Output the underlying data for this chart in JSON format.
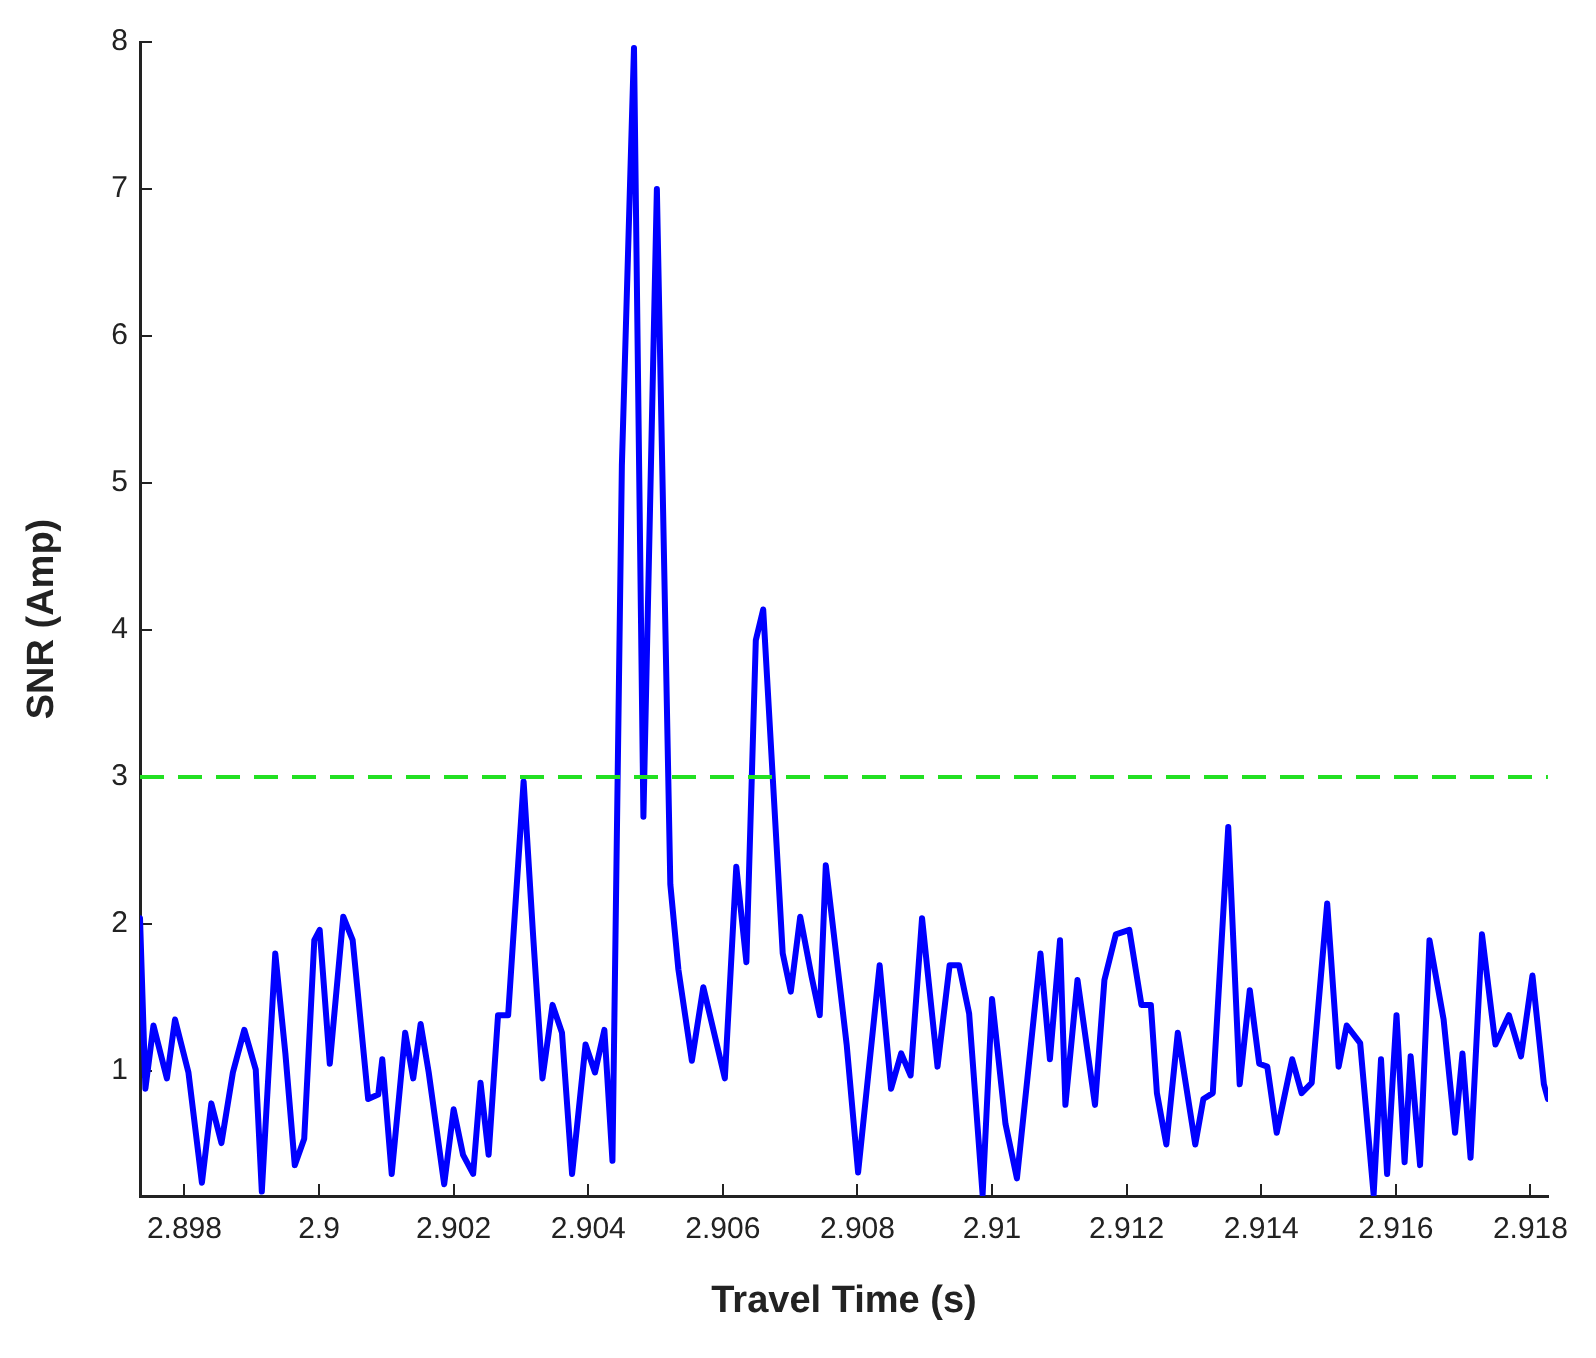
{
  "chart_data": {
    "type": "line",
    "xlabel": "Travel Time (s)",
    "ylabel": "SNR (Amp)",
    "xlim": [
      2.89734,
      2.91826
    ],
    "ylim": [
      0.15,
      8
    ],
    "xticks": [
      2.898,
      2.9,
      2.902,
      2.904,
      2.906,
      2.908,
      2.91,
      2.912,
      2.914,
      2.916,
      2.918
    ],
    "yticks": [
      1,
      2,
      3,
      4,
      5,
      6,
      7,
      8
    ],
    "grid": false,
    "legend": false,
    "marker": "none",
    "line_style": "solid",
    "ref_lines": [
      {
        "axis": "y",
        "value": 3,
        "color": "#22e022",
        "line_style": "dashed"
      }
    ],
    "series": [
      {
        "color": "#0000ff",
        "x": [
          2.89734,
          2.89742,
          2.89754,
          2.89774,
          2.89786,
          2.89806,
          2.89826,
          2.8984,
          2.89855,
          2.89872,
          2.89889,
          2.89906,
          2.89915,
          2.89935,
          2.8995,
          2.89964,
          2.89978,
          2.89993,
          2.90001,
          2.90016,
          2.90036,
          2.9005,
          2.90073,
          2.90088,
          2.90094,
          2.90108,
          2.90128,
          2.9014,
          2.90151,
          2.90163,
          2.90186,
          2.902,
          2.90214,
          2.90229,
          2.9024,
          2.90252,
          2.90266,
          2.90281,
          2.90304,
          2.90318,
          2.90332,
          2.90347,
          2.90361,
          2.90376,
          2.90396,
          2.9041,
          2.90424,
          2.90436,
          2.9045,
          2.90468,
          2.90482,
          2.90502,
          2.90522,
          2.90534,
          2.90554,
          2.90571,
          2.90603,
          2.9062,
          2.90635,
          2.90649,
          2.9066,
          2.90689,
          2.90701,
          2.90715,
          2.90732,
          2.90744,
          2.90753,
          2.90784,
          2.90801,
          2.90833,
          2.9085,
          2.90865,
          2.90879,
          2.90896,
          2.90919,
          2.90937,
          2.90951,
          2.90966,
          2.90986,
          2.91,
          2.9102,
          2.91037,
          2.91072,
          2.91086,
          2.91101,
          2.91109,
          2.91127,
          2.91153,
          2.91167,
          2.91184,
          2.91204,
          2.91222,
          2.91236,
          2.91245,
          2.91259,
          2.91276,
          2.91302,
          2.91314,
          2.91328,
          2.91351,
          2.91368,
          2.91383,
          2.91397,
          2.91409,
          2.91423,
          2.91446,
          2.9146,
          2.91475,
          2.91498,
          2.91515,
          2.91527,
          2.91547,
          2.91567,
          2.91578,
          2.91587,
          2.91601,
          2.91613,
          2.91622,
          2.91636,
          2.9165,
          2.91671,
          2.91688,
          2.91699,
          2.91711,
          2.91728,
          2.91748,
          2.91768,
          2.91786,
          2.91803,
          2.9182,
          2.91826
        ],
        "values": [
          2.04,
          0.88,
          1.31,
          0.95,
          1.35,
          0.99,
          0.24,
          0.78,
          0.51,
          0.99,
          1.28,
          1.01,
          0.18,
          1.8,
          1.12,
          0.36,
          0.54,
          1.89,
          1.96,
          1.05,
          2.05,
          1.89,
          0.81,
          0.84,
          1.08,
          0.3,
          1.26,
          0.95,
          1.32,
          0.99,
          0.23,
          0.74,
          0.43,
          0.3,
          0.92,
          0.43,
          1.38,
          1.38,
          2.97,
          1.93,
          0.95,
          1.45,
          1.26,
          0.3,
          1.18,
          0.99,
          1.28,
          0.39,
          5.12,
          7.96,
          2.73,
          7.0,
          2.27,
          1.69,
          1.07,
          1.57,
          0.95,
          2.39,
          1.74,
          3.93,
          4.14,
          1.8,
          1.54,
          2.05,
          1.64,
          1.38,
          2.4,
          1.18,
          0.31,
          1.72,
          0.88,
          1.12,
          0.97,
          2.04,
          1.03,
          1.72,
          1.72,
          1.39,
          0.16,
          1.49,
          0.64,
          0.27,
          1.8,
          1.08,
          1.89,
          0.77,
          1.62,
          0.77,
          1.62,
          1.93,
          1.96,
          1.45,
          1.45,
          0.85,
          0.5,
          1.26,
          0.5,
          0.81,
          0.85,
          2.66,
          0.91,
          1.55,
          1.05,
          1.03,
          0.58,
          1.08,
          0.85,
          0.92,
          2.14,
          1.03,
          1.31,
          1.19,
          0.16,
          1.08,
          0.3,
          1.38,
          0.38,
          1.1,
          0.36,
          1.89,
          1.35,
          0.58,
          1.12,
          0.41,
          1.93,
          1.18,
          1.38,
          1.1,
          1.65,
          0.91,
          0.81
        ]
      }
    ]
  }
}
